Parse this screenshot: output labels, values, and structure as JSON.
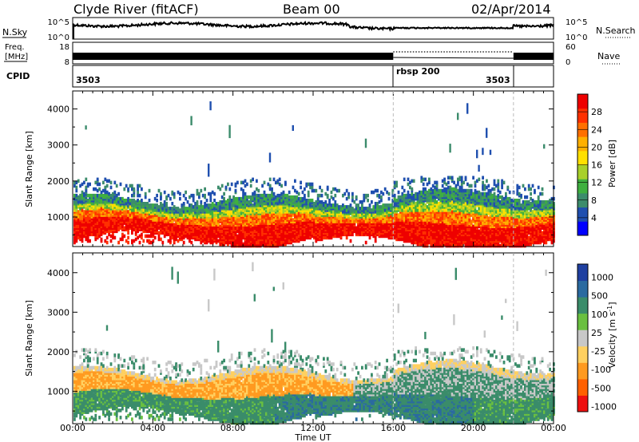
{
  "header": {
    "station": "Clyde River (fitACF)",
    "beam": "Beam 00",
    "date": "02/Apr/2014"
  },
  "chart_data": [
    {
      "type": "line",
      "panel": "nsky",
      "left_label": "N.Sky",
      "right_label": "N.Search",
      "left_ticks": [
        "10^5",
        "10^0"
      ],
      "right_ticks": [
        "10^5",
        "10^0"
      ]
    },
    {
      "type": "line",
      "panel": "freq",
      "left_label_lines": [
        "Freq.",
        "[MHz]"
      ],
      "right_label": "Nave",
      "left_ticks": [
        "18",
        "8"
      ],
      "right_ticks": [
        "60",
        "0"
      ]
    },
    {
      "type": "table",
      "panel": "cpid",
      "label": "CPID",
      "segments": [
        {
          "name": "3503",
          "start_hour": 0,
          "end_hour": 16
        },
        {
          "name": "rbsp 200",
          "start_hour": 16,
          "end_hour": 22
        },
        {
          "name": "3503",
          "start_hour": 22,
          "end_hour": 24
        }
      ]
    },
    {
      "type": "heatmap",
      "panel": "power",
      "ylabel": "Slant Range [km]",
      "yticks": [
        "1000",
        "2000",
        "3000",
        "4000"
      ],
      "ylim": [
        180,
        4500
      ],
      "colorbar": {
        "label": "Power [dB]",
        "ticks": [
          "4",
          "8",
          "12",
          "16",
          "20",
          "24",
          "28"
        ],
        "range": [
          0,
          32
        ],
        "colors": [
          "#0000ff",
          "#1f4faf",
          "#3c8c6c",
          "#3fb03f",
          "#a8d02a",
          "#ffe000",
          "#ffb000",
          "#ff7000",
          "#ff3000",
          "#ee0000"
        ]
      }
    },
    {
      "type": "heatmap",
      "panel": "velocity",
      "ylabel": "Slant Range [km]",
      "yticks": [
        "1000",
        "2000",
        "3000",
        "4000"
      ],
      "ylim": [
        180,
        4500
      ],
      "xlabel": "Time UT",
      "xticks": [
        "00:00",
        "04:00",
        "08:00",
        "12:00",
        "16:00",
        "20:00",
        "00:00"
      ],
      "xlim_hours": [
        0,
        24
      ],
      "colorbar": {
        "label_prefix": "Velocity [m s",
        "label_sup": "-1",
        "label_suffix": "]",
        "ticks": [
          "1000",
          "500",
          "100",
          "25",
          "-25",
          "-100",
          "-500",
          "-1000"
        ],
        "colors": [
          "#1f3fa0",
          "#2a6aa0",
          "#3a8c6a",
          "#6ac040",
          "#c8c8c8",
          "#ffd060",
          "#ff9a20",
          "#ff6000",
          "#ee1010"
        ]
      }
    }
  ]
}
